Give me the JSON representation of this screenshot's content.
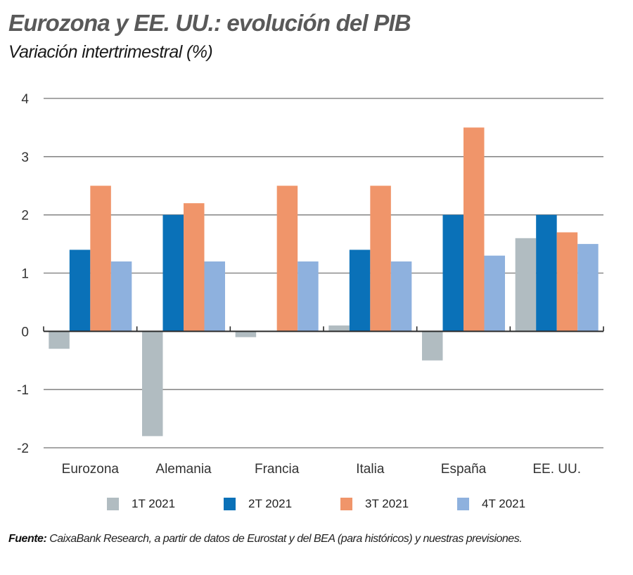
{
  "header": {
    "title": "Eurozona y EE. UU.: evolución del PIB",
    "subtitle": "Variación intertrimestral (%)"
  },
  "chart_data": {
    "type": "bar",
    "title": "Eurozona y EE. UU.: evolución del PIB",
    "subtitle": "Variación intertrimestral (%)",
    "xlabel": "",
    "ylabel": "",
    "categories": [
      "Eurozona",
      "Alemania",
      "Francia",
      "Italia",
      "España",
      "EE. UU."
    ],
    "series": [
      {
        "name": "1T 2021",
        "color": "#b1bcc1",
        "values": [
          -0.3,
          -1.8,
          -0.1,
          0.1,
          -0.5,
          1.6
        ]
      },
      {
        "name": "2T 2021",
        "color": "#0a71b8",
        "values": [
          1.4,
          2.0,
          0.0,
          1.4,
          2.0,
          2.0
        ]
      },
      {
        "name": "3T 2021",
        "color": "#f0956a",
        "values": [
          2.5,
          2.2,
          2.5,
          2.5,
          3.5,
          1.7
        ]
      },
      {
        "name": "4T 2021",
        "color": "#8eb1de",
        "values": [
          1.2,
          1.2,
          1.2,
          1.2,
          1.3,
          1.5
        ]
      }
    ],
    "ylim": [
      -2,
      4
    ],
    "yticks": [
      4,
      3,
      2,
      1,
      0,
      -1,
      -2
    ],
    "grid": true,
    "legend_position": "bottom"
  },
  "footer": {
    "source_label": "Fuente:",
    "source_text": " CaixaBank Research, a partir de datos de Eurostat y del BEA (para históricos) y nuestras previsiones."
  }
}
